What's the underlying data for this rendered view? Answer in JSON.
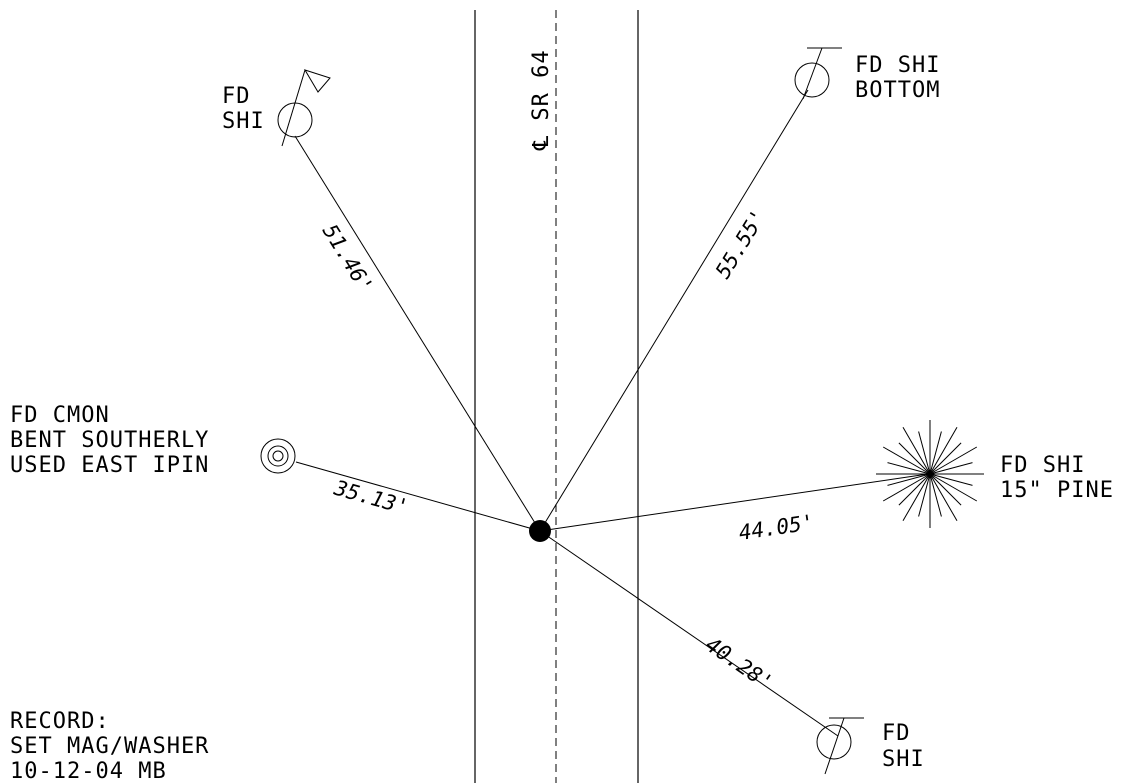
{
  "road": {
    "centerline_label": "℄ SR 64"
  },
  "monuments": {
    "nw": {
      "line1": "FD",
      "line2": "SHI"
    },
    "ne": {
      "line1": "FD SHI",
      "line2": "BOTTOM"
    },
    "w": {
      "line1": "FD CMON",
      "line2": "BENT SOUTHERLY",
      "line3": "USED EAST IPIN"
    },
    "e": {
      "line1": "FD SHI",
      "line2": "15\" PINE"
    },
    "se": {
      "line1": "FD",
      "line2": "SHI"
    }
  },
  "distances": {
    "nw": "51.46'",
    "ne": "55.55'",
    "w": "35.13'",
    "e": "44.05'",
    "se": "40.28'"
  },
  "record": {
    "line1": "RECORD:",
    "line2": "SET MAG/WASHER",
    "line3": "10-12-04  MB"
  }
}
